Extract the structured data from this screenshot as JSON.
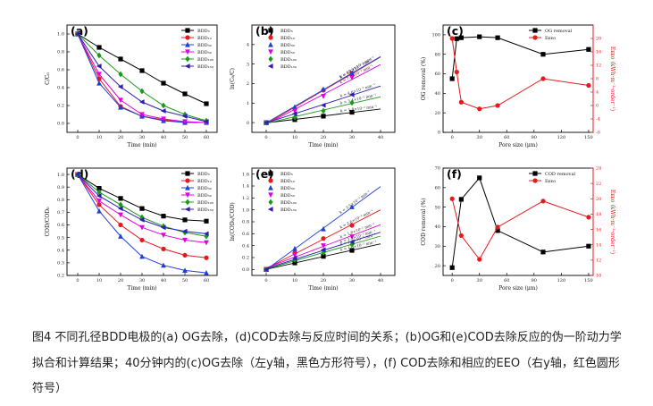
{
  "caption": "图4  不同孔径BDD电极的(a) OG去除，(d)COD去除与反应时间的关系；(b)OG和(e)COD去除反应的伪一阶动力学拟合和计算结果；40分钟内的(c)OG去除（左y轴，黑色方形符号），(f) COD去除和相应的EEO（右y轴，红色圆形符号）",
  "chart_data": [
    {
      "id": "a",
      "panel_label": "(a)",
      "type": "line",
      "xlabel": "Time (min)",
      "ylabel": "C/C₀",
      "xlim": [
        -5,
        65
      ],
      "ylim": [
        -0.1,
        1.1
      ],
      "xticks": [
        0,
        10,
        20,
        30,
        40,
        50,
        60
      ],
      "yticks": [
        0.0,
        0.2,
        0.4,
        0.6,
        0.8,
        1.0
      ],
      "x": [
        0,
        10,
        20,
        30,
        40,
        50,
        60
      ],
      "series": [
        {
          "name": "BDD₅",
          "color": "#000000",
          "marker": "square",
          "values": [
            1.0,
            0.85,
            0.72,
            0.59,
            0.45,
            0.33,
            0.22
          ]
        },
        {
          "name": "BDD₁₀",
          "color": "#e41a1c",
          "marker": "circle",
          "values": [
            1.0,
            0.5,
            0.19,
            0.08,
            0.04,
            0.01,
            0.01
          ]
        },
        {
          "name": "BDD₃₀",
          "color": "#1f3fd6",
          "marker": "triangle-up",
          "values": [
            1.0,
            0.45,
            0.18,
            0.08,
            0.03,
            0.01,
            0.01
          ]
        },
        {
          "name": "BDD₅₀",
          "color": "#e000e0",
          "marker": "triangle-down",
          "values": [
            1.0,
            0.55,
            0.26,
            0.1,
            0.05,
            0.02,
            0.01
          ]
        },
        {
          "name": "BDD₁₀₀",
          "color": "#1a9a1a",
          "marker": "diamond",
          "values": [
            1.0,
            0.76,
            0.55,
            0.36,
            0.2,
            0.1,
            0.03
          ]
        },
        {
          "name": "BDD₁₅₀",
          "color": "#2a1fb0",
          "marker": "triangle-left",
          "values": [
            1.0,
            0.64,
            0.41,
            0.24,
            0.14,
            0.08,
            0.02
          ]
        }
      ]
    },
    {
      "id": "b",
      "panel_label": "(b)",
      "type": "scatter",
      "xlabel": "Time (min)",
      "ylabel": "ln(C₀/C)",
      "xlim": [
        -5,
        45
      ],
      "ylim": [
        -0.5,
        5
      ],
      "xticks": [
        0,
        10,
        20,
        30,
        40
      ],
      "yticks": [
        0,
        1,
        2,
        3,
        4
      ],
      "x": [
        0,
        10,
        20,
        30
      ],
      "series": [
        {
          "name": "BDD₅",
          "color": "#000000",
          "marker": "square",
          "values": [
            0,
            0.15,
            0.33,
            0.53
          ],
          "fit": "k = 1.8×10⁻² min⁻¹"
        },
        {
          "name": "BDD₁₀",
          "color": "#e41a1c",
          "marker": "circle",
          "values": [
            0,
            0.69,
            1.66,
            2.53
          ],
          "fit": "k = 8.4×10⁻² min⁻¹"
        },
        {
          "name": "BDD₃₀",
          "color": "#1f3fd6",
          "marker": "triangle-up",
          "values": [
            0,
            0.8,
            1.71,
            2.53
          ],
          "fit": "k = 10.9×10⁻² min⁻¹"
        },
        {
          "name": "BDD₅₀",
          "color": "#e000e0",
          "marker": "triangle-down",
          "values": [
            0,
            0.6,
            1.35,
            2.3
          ],
          "fit": "k = 7.6×10⁻² min⁻¹"
        },
        {
          "name": "BDD₁₀₀",
          "color": "#1a9a1a",
          "marker": "diamond",
          "values": [
            0,
            0.27,
            0.6,
            1.02
          ],
          "fit": "k = 3.4×10⁻² min⁻¹"
        },
        {
          "name": "BDD₁₅₀",
          "color": "#2a1fb0",
          "marker": "triangle-left",
          "values": [
            0,
            0.45,
            0.89,
            1.43
          ],
          "fit": "k = 4.6×10⁻² min⁻¹"
        }
      ]
    },
    {
      "id": "c",
      "panel_label": "(c)",
      "type": "line",
      "xlabel": "Pore size (μm)",
      "ylabel": "OG removal (%)",
      "y2label": "Eᴇᴇᴏ (kWh·m⁻³·order⁻¹)",
      "xlim": [
        -10,
        155
      ],
      "ylim": [
        0,
        110
      ],
      "y2lim": [
        -8,
        24
      ],
      "xticks": [
        0,
        30,
        60,
        90,
        120,
        150
      ],
      "yticks": [
        0,
        20,
        40,
        60,
        80,
        100
      ],
      "y2ticks": [
        -8,
        -4,
        0,
        4,
        8,
        12,
        16,
        20
      ],
      "x": [
        0,
        5,
        10,
        30,
        50,
        100,
        150
      ],
      "series": [
        {
          "name": "OG removal",
          "color": "#000000",
          "marker": "square",
          "axis": "left",
          "values": [
            55,
            96,
            97,
            98,
            97,
            80,
            85
          ]
        },
        {
          "name": "Eᴇᴇᴏ",
          "color": "#e41a1c",
          "marker": "circle",
          "axis": "right",
          "values": [
            20,
            10,
            1,
            -1,
            0,
            8,
            6
          ]
        }
      ]
    },
    {
      "id": "d",
      "panel_label": "(d)",
      "type": "line",
      "xlabel": "Time (min)",
      "ylabel": "COD/COD₀",
      "xlim": [
        -5,
        65
      ],
      "ylim": [
        0.2,
        1.05
      ],
      "xticks": [
        0,
        10,
        20,
        30,
        40,
        50,
        60
      ],
      "yticks": [
        0.2,
        0.3,
        0.4,
        0.5,
        0.6,
        0.7,
        0.8,
        0.9,
        1.0
      ],
      "x": [
        0,
        10,
        20,
        30,
        40,
        50,
        60
      ],
      "series": [
        {
          "name": "BDD₅",
          "color": "#000000",
          "marker": "square",
          "values": [
            1.0,
            0.89,
            0.81,
            0.73,
            0.67,
            0.64,
            0.63
          ]
        },
        {
          "name": "BDD₁₀",
          "color": "#e41a1c",
          "marker": "circle",
          "values": [
            1.0,
            0.76,
            0.6,
            0.48,
            0.41,
            0.36,
            0.34
          ]
        },
        {
          "name": "BDD₃₀",
          "color": "#1f3fd6",
          "marker": "triangle-up",
          "values": [
            1.0,
            0.71,
            0.51,
            0.35,
            0.28,
            0.24,
            0.22
          ]
        },
        {
          "name": "BDD₅₀",
          "color": "#e000e0",
          "marker": "triangle-down",
          "values": [
            1.0,
            0.79,
            0.68,
            0.58,
            0.52,
            0.48,
            0.46
          ]
        },
        {
          "name": "BDD₁₀₀",
          "color": "#1a9a1a",
          "marker": "diamond",
          "values": [
            1.0,
            0.86,
            0.76,
            0.66,
            0.59,
            0.54,
            0.51
          ]
        },
        {
          "name": "BDD₁₅₀",
          "color": "#2a1fb0",
          "marker": "triangle-left",
          "values": [
            1.0,
            0.83,
            0.73,
            0.64,
            0.58,
            0.55,
            0.53
          ]
        }
      ]
    },
    {
      "id": "e",
      "panel_label": "(e)",
      "type": "scatter",
      "xlabel": "Time (min)",
      "ylabel": "ln(COD₀/COD)",
      "xlim": [
        -5,
        45
      ],
      "ylim": [
        -0.1,
        1.7
      ],
      "xticks": [
        0,
        10,
        20,
        30,
        40
      ],
      "yticks": [
        0.0,
        0.2,
        0.4,
        0.6,
        0.8,
        1.0,
        1.2,
        1.4,
        1.6
      ],
      "x": [
        0,
        10,
        20,
        30
      ],
      "series": [
        {
          "name": "BDD₅",
          "color": "#000000",
          "marker": "square",
          "values": [
            0,
            0.11,
            0.22,
            0.32
          ],
          "fit": "k = 1.0×10⁻² min⁻¹"
        },
        {
          "name": "BDD₁₀",
          "color": "#e41a1c",
          "marker": "circle",
          "values": [
            0,
            0.28,
            0.52,
            0.74
          ],
          "fit": "k = 2.6×10⁻² min⁻¹"
        },
        {
          "name": "BDD₃₀",
          "color": "#1f3fd6",
          "marker": "triangle-up",
          "values": [
            0,
            0.35,
            0.68,
            1.05
          ],
          "fit": "k = 3.5×10⁻² min⁻¹"
        },
        {
          "name": "BDD₅₀",
          "color": "#e000e0",
          "marker": "triangle-down",
          "values": [
            0,
            0.24,
            0.4,
            0.55
          ],
          "fit": "k = 1.8×10⁻² min⁻¹"
        },
        {
          "name": "BDD₁₀₀",
          "color": "#1a9a1a",
          "marker": "diamond",
          "values": [
            0,
            0.16,
            0.28,
            0.42
          ],
          "fit": "k = 1.4×10⁻² min⁻¹"
        },
        {
          "name": "BDD₁₅₀",
          "color": "#2a1fb0",
          "marker": "triangle-left",
          "values": [
            0,
            0.19,
            0.33,
            0.46
          ],
          "fit": "k = 1.5×10⁻² min⁻¹"
        }
      ]
    },
    {
      "id": "f",
      "panel_label": "(f)",
      "type": "line",
      "xlabel": "Pore size (μm)",
      "ylabel": "COD removal (%)",
      "y2label": "Eᴇᴇᴏ (kWh·m⁻³·order⁻¹)",
      "xlim": [
        -10,
        155
      ],
      "ylim": [
        15,
        70
      ],
      "y2lim": [
        10,
        24
      ],
      "xticks": [
        0,
        30,
        60,
        90,
        120,
        150
      ],
      "yticks": [
        20,
        30,
        40,
        50,
        60,
        70
      ],
      "y2ticks": [
        10,
        12,
        14,
        16,
        18,
        20,
        22,
        24
      ],
      "x": [
        0,
        10,
        30,
        50,
        100,
        150
      ],
      "series": [
        {
          "name": "COD removal",
          "color": "#000000",
          "marker": "square",
          "axis": "left",
          "values": [
            19,
            54,
            65,
            38,
            27,
            30
          ]
        },
        {
          "name": "Eᴇᴇᴏ",
          "color": "#e41a1c",
          "marker": "circle",
          "axis": "right",
          "values": [
            20,
            15.2,
            12.1,
            16.3,
            19.7,
            17.6
          ]
        }
      ]
    }
  ]
}
